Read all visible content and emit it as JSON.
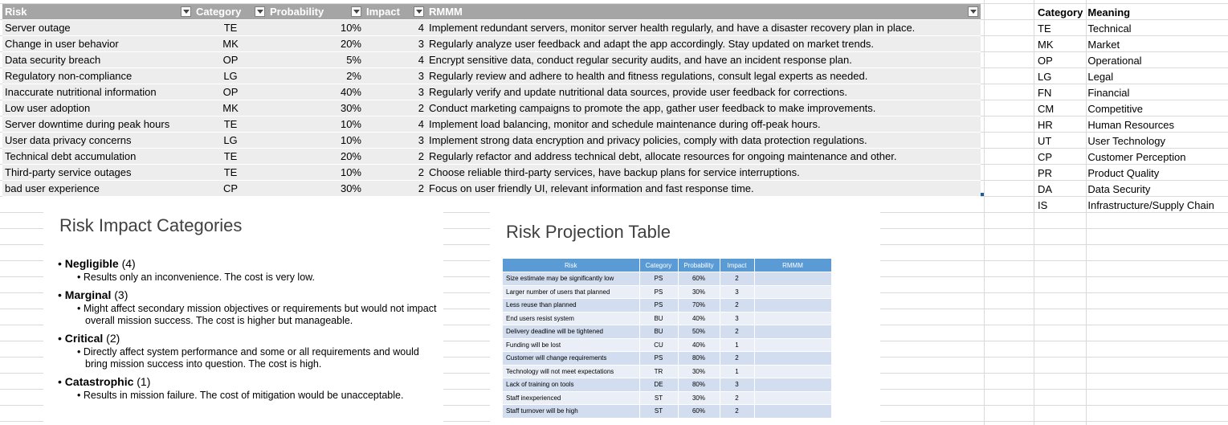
{
  "risk_table": {
    "headers": [
      "Risk",
      "Category",
      "Probability",
      "Impact",
      "RMMM"
    ],
    "rows": [
      {
        "risk": "Server outage",
        "category": "TE",
        "probability": "10%",
        "impact": "4",
        "rmmm": "Implement redundant servers, monitor server health regularly, and have a disaster recovery plan in place."
      },
      {
        "risk": "Change in user behavior",
        "category": "MK",
        "probability": "20%",
        "impact": "3",
        "rmmm": "Regularly analyze user feedback and adapt the app accordingly. Stay updated on market trends."
      },
      {
        "risk": "Data security breach",
        "category": "OP",
        "probability": "5%",
        "impact": "4",
        "rmmm": "Encrypt sensitive data, conduct regular security audits, and have an incident response plan."
      },
      {
        "risk": "Regulatory non-compliance",
        "category": "LG",
        "probability": "2%",
        "impact": "3",
        "rmmm": "Regularly review and adhere to health and fitness regulations, consult legal experts as needed."
      },
      {
        "risk": "Inaccurate nutritional information",
        "category": "OP",
        "probability": "40%",
        "impact": "3",
        "rmmm": "Regularly verify and update nutritional data sources, provide user feedback for corrections."
      },
      {
        "risk": "Low user adoption",
        "category": "MK",
        "probability": "30%",
        "impact": "2",
        "rmmm": "Conduct marketing campaigns to promote the app, gather user feedback to make improvements."
      },
      {
        "risk": "Server downtime during peak hours",
        "category": "TE",
        "probability": "10%",
        "impact": "4",
        "rmmm": "Implement load balancing, monitor and schedule maintenance during off-peak hours."
      },
      {
        "risk": "User data privacy concerns",
        "category": "LG",
        "probability": "10%",
        "impact": "3",
        "rmmm": "Implement strong data encryption and privacy policies, comply with data protection regulations."
      },
      {
        "risk": "Technical debt accumulation",
        "category": "TE",
        "probability": "20%",
        "impact": "2",
        "rmmm": "Regularly refactor and address technical debt, allocate resources for ongoing maintenance and other."
      },
      {
        "risk": "Third-party service outages",
        "category": "TE",
        "probability": "10%",
        "impact": "2",
        "rmmm": "Choose reliable third-party services, have backup plans for service interruptions."
      },
      {
        "risk": "bad user experience",
        "category": "CP",
        "probability": "30%",
        "impact": "2",
        "rmmm": "Focus on user friendly UI, relevant information and fast response time."
      }
    ]
  },
  "legend": {
    "headers": [
      "Category",
      "Meaning"
    ],
    "rows": [
      [
        "TE",
        "Technical"
      ],
      [
        "MK",
        "Market"
      ],
      [
        "OP",
        "Operational"
      ],
      [
        "LG",
        "Legal"
      ],
      [
        "FN",
        "Financial"
      ],
      [
        "CM",
        "Competitive"
      ],
      [
        "HR",
        "Human Resources"
      ],
      [
        "UT",
        "User Technology"
      ],
      [
        "CP",
        "Customer Perception"
      ],
      [
        "PR",
        "Product Quality"
      ],
      [
        "DA",
        "Data Security"
      ],
      [
        "IS",
        "Infrastructure/Supply Chain"
      ]
    ]
  },
  "impact_slide": {
    "title": "Risk Impact Categories",
    "items": [
      {
        "name": "Negligible",
        "level": "(4)",
        "desc": "Results only an inconvenience. The cost is very low."
      },
      {
        "name": "Marginal",
        "level": "(3)",
        "desc": "Might affect secondary mission objectives or requirements but would not impact overall mission success. The cost is higher but manageable."
      },
      {
        "name": "Critical",
        "level": "(2)",
        "desc": "Directly affect system performance and some or all requirements and would bring mission success into question. The cost is high."
      },
      {
        "name": "Catastrophic",
        "level": "(1)",
        "desc": "Results in mission failure. The cost of mitigation would be unacceptable."
      }
    ]
  },
  "projection_slide": {
    "title": "Risk Projection Table",
    "headers": [
      "Risk",
      "Category",
      "Probability",
      "Impact",
      "RMMM"
    ],
    "rows": [
      [
        "Size estimate may be significantly low",
        "PS",
        "60%",
        "2",
        ""
      ],
      [
        "Larger number of users that planned",
        "PS",
        "30%",
        "3",
        ""
      ],
      [
        "Less reuse than planned",
        "PS",
        "70%",
        "2",
        ""
      ],
      [
        "End users resist system",
        "BU",
        "40%",
        "3",
        ""
      ],
      [
        "Delivery deadline will be tightened",
        "BU",
        "50%",
        "2",
        ""
      ],
      [
        "Funding will be lost",
        "CU",
        "40%",
        "1",
        ""
      ],
      [
        "Customer will change requirements",
        "PS",
        "80%",
        "2",
        ""
      ],
      [
        "Technology will not meet expectations",
        "TR",
        "30%",
        "1",
        ""
      ],
      [
        "Lack of training on tools",
        "DE",
        "80%",
        "3",
        ""
      ],
      [
        "Staff inexperienced",
        "ST",
        "30%",
        "2",
        ""
      ],
      [
        "Staff turnover will be high",
        "ST",
        "60%",
        "2",
        ""
      ]
    ]
  },
  "colors": {
    "header_bg": "#a5a5a5",
    "row_bg": "#ededed",
    "slide_header": "#5b9bd5"
  }
}
